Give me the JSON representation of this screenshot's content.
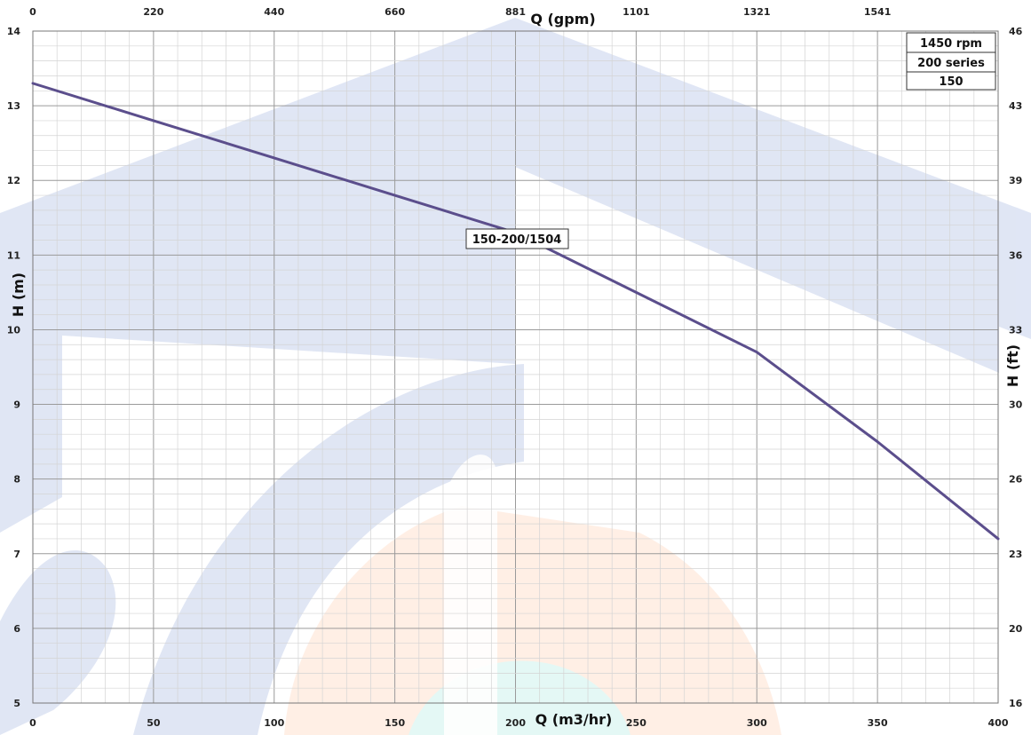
{
  "chart_data": {
    "type": "line",
    "x_bottom": {
      "label": "Q (m3/hr)",
      "range": [
        0,
        400
      ],
      "ticks": [
        0,
        50,
        100,
        150,
        200,
        250,
        300,
        350,
        400
      ]
    },
    "x_top": {
      "label": "Q (gpm)",
      "ticks": [
        "0",
        "220",
        "440",
        "660",
        "881",
        "1101",
        "1321",
        "1541"
      ],
      "tick_q_values": [
        0,
        50,
        100,
        150,
        200,
        250,
        300,
        350
      ]
    },
    "y_left": {
      "label": "H (m)",
      "range": [
        5,
        14
      ],
      "ticks": [
        5,
        6,
        7,
        8,
        9,
        10,
        11,
        12,
        13,
        14
      ]
    },
    "y_right": {
      "label": "H (ft)",
      "ticks": [
        "16",
        "20",
        "23",
        "26",
        "30",
        "33",
        "36",
        "39",
        "43",
        "46"
      ],
      "tick_h_values": [
        5,
        6,
        7,
        8,
        9,
        10,
        11,
        12,
        13,
        14
      ]
    },
    "grid": true,
    "series": [
      {
        "name": "150-200/1504",
        "color": "#5b4e8c",
        "x": [
          0,
          50,
          100,
          150,
          200,
          250,
          300,
          350,
          400
        ],
        "y": [
          13.3,
          12.8,
          12.3,
          11.8,
          11.3,
          10.5,
          9.7,
          8.5,
          7.2
        ]
      }
    ],
    "legend_box": {
      "position": "top-right",
      "lines": [
        "1450 rpm",
        "200 series",
        "150"
      ]
    },
    "colors": {
      "grid_major": "#9a9a9a",
      "grid_minor": "#d4d4d4",
      "watermark": "#c7d2ec"
    }
  }
}
